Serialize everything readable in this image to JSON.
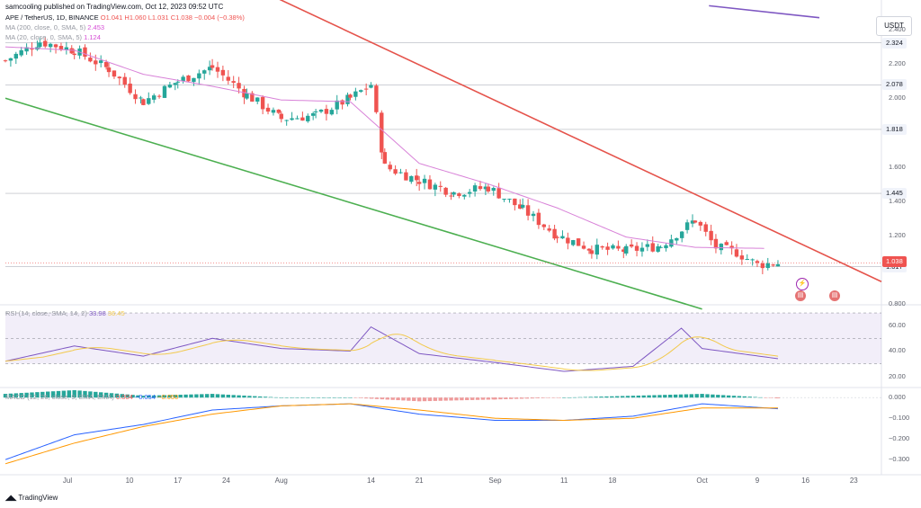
{
  "header": {
    "publisher": "samcooling published on TradingView.com, Oct 12, 2023 09:52 UTC"
  },
  "legend": {
    "symbol": "APE / TetherUS, 1D, BINANCE",
    "ohlc": "O1.041 H1.060 L1.031 C1.038 −0.004 (−0.38%)",
    "ma200_label": "MA (200, close, 0, SMA, 5)",
    "ma200_value": "2.453",
    "ma20_label": "MA (20, close, 0, SMA, 5)",
    "ma20_value": "1.124",
    "rsi_label": "RSI (14, close, SMA, 14, 2)",
    "rsi_value": "33.98",
    "rsi_ma": "36.45",
    "macd_label": "MACD (12, 26, close, 9, EMA, EMA)",
    "macd_hist": "0.004",
    "macd_value": "−0.054",
    "macd_signal": "−0.050"
  },
  "currency": "USDT",
  "price_axis": {
    "ticks": [
      "2.400",
      "2.200",
      "2.000",
      "1.800",
      "1.600",
      "1.400",
      "1.200",
      "1.000",
      "0.800"
    ],
    "levels": [
      "2.324",
      "2.078",
      "1.818",
      "1.445",
      "1.017"
    ],
    "current": "1.038"
  },
  "rsi_axis": {
    "ticks": [
      "60.00",
      "40.00",
      "20.00"
    ]
  },
  "macd_axis": {
    "ticks": [
      "0.000",
      "−0.100",
      "−0.200",
      "−0.300"
    ]
  },
  "x_axis": {
    "labels": [
      "Jul",
      "10",
      "17",
      "24",
      "Aug",
      "14",
      "21",
      "Sep",
      "11",
      "18",
      "Oct",
      "9",
      "16",
      "23"
    ]
  },
  "brand": "TradingView",
  "colors": {
    "up": "#26a69a",
    "down": "#ef5350",
    "ma": "#d882d8",
    "rsi": "#7e57c2",
    "macd": "#2962ff",
    "signal": "#ff9800",
    "support": "#4caf50",
    "resistance": "#e5534b"
  },
  "chart_data": {
    "type": "candlestick",
    "pair": "APE / TetherUS",
    "interval": "1D",
    "exchange": "BINANCE",
    "ylim": [
      0.8,
      2.5
    ],
    "series": [
      {
        "name": "price",
        "x": [
          "Jun 22",
          "Jun 27",
          "Jul 2",
          "Jul 7",
          "Jul 12",
          "Jul 17",
          "Jul 22",
          "Jul 27",
          "Aug 1",
          "Aug 6",
          "Aug 11",
          "Aug 14",
          "Aug 16",
          "Aug 21",
          "Aug 26",
          "Aug 31",
          "Sep 5",
          "Sep 10",
          "Sep 15",
          "Sep 20",
          "Sep 25",
          "Sep 30",
          "Oct 3",
          "Oct 6",
          "Oct 9",
          "Oct 12"
        ],
        "close": [
          2.22,
          2.33,
          2.28,
          2.17,
          1.98,
          2.1,
          2.18,
          2.02,
          1.88,
          1.9,
          2.0,
          2.08,
          1.6,
          1.52,
          1.45,
          1.48,
          1.35,
          1.2,
          1.12,
          1.11,
          1.14,
          1.29,
          1.13,
          1.1,
          1.03,
          1.038
        ]
      },
      {
        "name": "MA (20, close, 0, SMA, 5)",
        "x": [
          "Jun 22",
          "Jul 2",
          "Jul 12",
          "Jul 22",
          "Aug 1",
          "Aug 11",
          "Aug 21",
          "Aug 31",
          "Sep 10",
          "Sep 20",
          "Sep 30",
          "Oct 10"
        ],
        "values": [
          2.3,
          2.28,
          2.14,
          2.07,
          1.99,
          1.98,
          1.62,
          1.5,
          1.36,
          1.19,
          1.13,
          1.124
        ]
      },
      {
        "name": "RSI (14, close, SMA, 14, 2)",
        "x": [
          "Jun 22",
          "Jul 2",
          "Jul 12",
          "Jul 22",
          "Aug 1",
          "Aug 11",
          "Aug 14",
          "Aug 21",
          "Sep 1",
          "Sep 11",
          "Sep 21",
          "Sep 28",
          "Oct 1",
          "Oct 12"
        ],
        "values": [
          32,
          44,
          36,
          50,
          42,
          40,
          59,
          38,
          31,
          24,
          28,
          58,
          42,
          33.98
        ]
      },
      {
        "name": "MACD",
        "x": [
          "Jun 22",
          "Jul 2",
          "Jul 12",
          "Jul 22",
          "Aug 1",
          "Aug 11",
          "Aug 21",
          "Sep 1",
          "Sep 11",
          "Sep 21",
          "Oct 1",
          "Oct 12"
        ],
        "values": [
          -0.3,
          -0.18,
          -0.13,
          -0.06,
          -0.04,
          -0.03,
          -0.08,
          -0.11,
          -0.11,
          -0.09,
          -0.03,
          -0.054
        ]
      },
      {
        "name": "Signal",
        "x": [
          "Jun 22",
          "Jul 2",
          "Jul 12",
          "Jul 22",
          "Aug 1",
          "Aug 11",
          "Aug 21",
          "Sep 1",
          "Sep 11",
          "Sep 21",
          "Oct 1",
          "Oct 12"
        ],
        "values": [
          -0.32,
          -0.22,
          -0.14,
          -0.08,
          -0.04,
          -0.03,
          -0.06,
          -0.1,
          -0.11,
          -0.1,
          -0.05,
          -0.05
        ]
      }
    ]
  }
}
